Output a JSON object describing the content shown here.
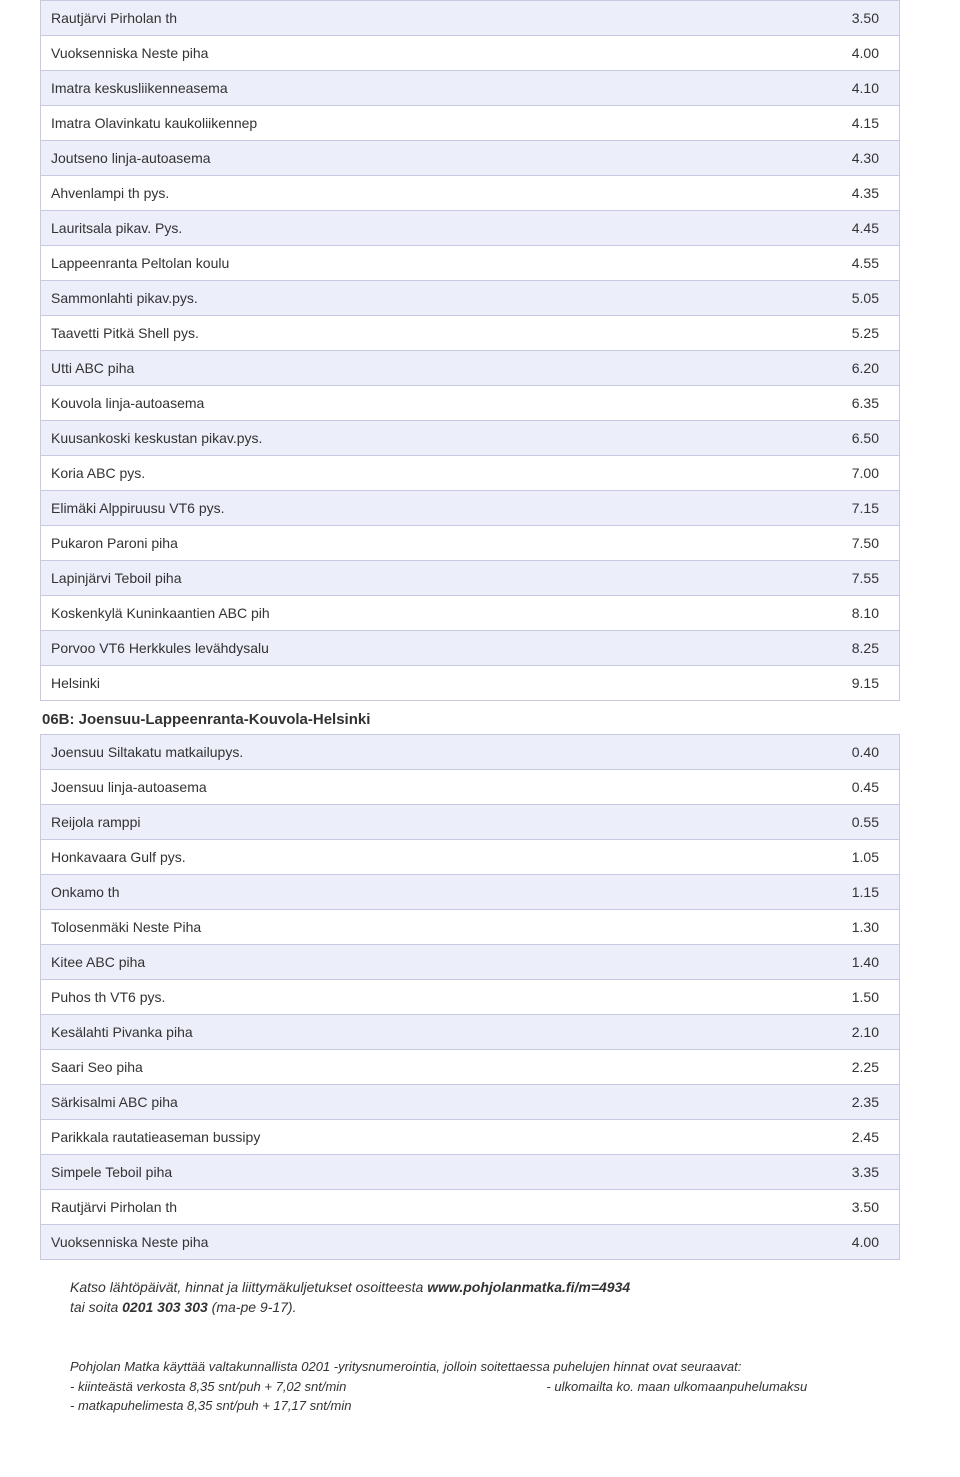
{
  "colors": {
    "row_alt_bg": "#eceef9",
    "row_norm_bg": "#ffffff",
    "border": "#c7c9e0",
    "text": "#333333"
  },
  "table1": {
    "rows": [
      {
        "name": "Rautjärvi Pirholan th",
        "val": "3.50",
        "alt": true
      },
      {
        "name": "Vuoksenniska Neste piha",
        "val": "4.00",
        "alt": false
      },
      {
        "name": "Imatra keskusliikenneasema",
        "val": "4.10",
        "alt": true
      },
      {
        "name": "Imatra Olavinkatu kaukoliikennep",
        "val": "4.15",
        "alt": false
      },
      {
        "name": "Joutseno linja-autoasema",
        "val": "4.30",
        "alt": true
      },
      {
        "name": "Ahvenlampi th pys.",
        "val": "4.35",
        "alt": false
      },
      {
        "name": "Lauritsala pikav. Pys.",
        "val": "4.45",
        "alt": true
      },
      {
        "name": "Lappeenranta Peltolan koulu",
        "val": "4.55",
        "alt": false
      },
      {
        "name": "Sammonlahti pikav.pys.",
        "val": "5.05",
        "alt": true
      },
      {
        "name": "Taavetti Pitkä Shell pys.",
        "val": "5.25",
        "alt": false
      },
      {
        "name": "Utti ABC piha",
        "val": "6.20",
        "alt": true
      },
      {
        "name": "Kouvola linja-autoasema",
        "val": "6.35",
        "alt": false
      },
      {
        "name": "Kuusankoski keskustan pikav.pys.",
        "val": "6.50",
        "alt": true
      },
      {
        "name": "Koria ABC pys.",
        "val": "7.00",
        "alt": false
      },
      {
        "name": "Elimäki Alppiruusu VT6 pys.",
        "val": "7.15",
        "alt": true
      },
      {
        "name": "Pukaron Paroni piha",
        "val": "7.50",
        "alt": false
      },
      {
        "name": "Lapinjärvi Teboil piha",
        "val": "7.55",
        "alt": true
      },
      {
        "name": "Koskenkylä Kuninkaantien ABC pih",
        "val": "8.10",
        "alt": false
      },
      {
        "name": "Porvoo VT6 Herkkules levähdysalu",
        "val": "8.25",
        "alt": true
      },
      {
        "name": "Helsinki",
        "val": "9.15",
        "alt": false
      }
    ]
  },
  "section_heading": "06B: Joensuu-Lappeenranta-Kouvola-Helsinki",
  "table2": {
    "rows": [
      {
        "name": "Joensuu Siltakatu matkailupys.",
        "val": "0.40",
        "alt": true
      },
      {
        "name": "Joensuu linja-autoasema",
        "val": "0.45",
        "alt": false
      },
      {
        "name": "Reijola ramppi",
        "val": "0.55",
        "alt": true
      },
      {
        "name": "Honkavaara Gulf pys.",
        "val": "1.05",
        "alt": false
      },
      {
        "name": "Onkamo th",
        "val": "1.15",
        "alt": true
      },
      {
        "name": "Tolosenmäki Neste Piha",
        "val": "1.30",
        "alt": false
      },
      {
        "name": "Kitee ABC piha",
        "val": "1.40",
        "alt": true
      },
      {
        "name": "Puhos th VT6 pys.",
        "val": "1.50",
        "alt": false
      },
      {
        "name": "Kesälahti Pivanka piha",
        "val": "2.10",
        "alt": true
      },
      {
        "name": "Saari Seo piha",
        "val": "2.25",
        "alt": false
      },
      {
        "name": "Särkisalmi ABC piha",
        "val": "2.35",
        "alt": true
      },
      {
        "name": "Parikkala rautatieaseman bussipy",
        "val": "2.45",
        "alt": false
      },
      {
        "name": "Simpele Teboil piha",
        "val": "3.35",
        "alt": true
      },
      {
        "name": "Rautjärvi Pirholan th",
        "val": "3.50",
        "alt": false
      },
      {
        "name": "Vuoksenniska Neste piha",
        "val": "4.00",
        "alt": true
      }
    ]
  },
  "note": {
    "line1_prefix": "Katso lähtöpäivät, hinnat ja liittymäkuljetukset osoitteesta ",
    "line1_bold": "www.pohjolanmatka.fi/m=4934",
    "line2_prefix": "tai soita ",
    "line2_bold": "0201 303 303",
    "line2_suffix": " (ma-pe 9-17)."
  },
  "legal": {
    "intro": "Pohjolan Matka käyttää valtakunnallista 0201 -yritysnumerointia, jolloin soitettaessa puhelujen hinnat ovat seuraavat:",
    "bullet1": "- kiinteästä verkosta 8,35 snt/puh + 7,02 snt/min",
    "bullet_right": "- ulkomailta ko. maan ulkomaanpuhelumaksu",
    "bullet2": "- matkapuhelimesta 8,35 snt/puh + 17,17 snt/min"
  }
}
